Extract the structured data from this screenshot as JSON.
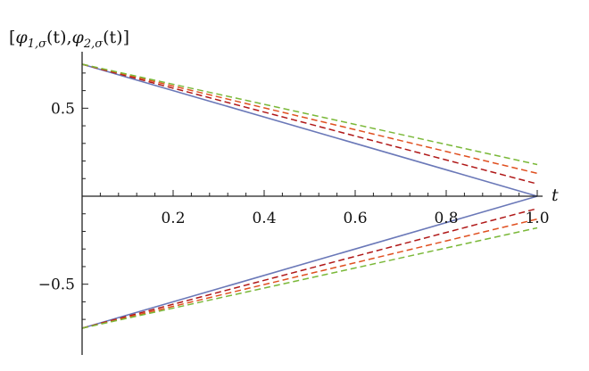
{
  "chart_data": {
    "type": "line",
    "title": "",
    "xlabel": "t",
    "ylabel": "[φ1,σ(t),φ2,σ(t)]",
    "ylabel_parts": {
      "open": "[",
      "phi1": "φ",
      "sub1": "1,σ",
      "arg1": "(t),",
      "phi2": "φ",
      "sub2": "2,σ",
      "arg2": "(t)]"
    },
    "xlim": [
      0,
      1.0
    ],
    "ylim": [
      -0.75,
      0.75
    ],
    "xticks": [
      0.2,
      0.4,
      0.6,
      0.8,
      1.0
    ],
    "xtick_labels": [
      "0.2",
      "0.4",
      "0.6",
      "0.8",
      "1.0"
    ],
    "yticks": [
      0.5,
      -0.5
    ],
    "ytick_labels": [
      "0.5",
      "−0.5"
    ],
    "grid": false,
    "series": [
      {
        "color": "#6a78b8",
        "dash": "solid",
        "x": [
          0,
          1.0
        ],
        "y": [
          0.75,
          0.0
        ]
      },
      {
        "color": "#6a78b8",
        "dash": "solid",
        "x": [
          0,
          1.0
        ],
        "y": [
          -0.75,
          0.0
        ]
      },
      {
        "color": "#b01818",
        "dash": "dashed",
        "x": [
          0,
          1.0
        ],
        "y": [
          0.75,
          0.07
        ]
      },
      {
        "color": "#b01818",
        "dash": "dashed",
        "x": [
          0,
          1.0
        ],
        "y": [
          -0.75,
          -0.07
        ]
      },
      {
        "color": "#e05020",
        "dash": "dashed",
        "x": [
          0,
          1.0
        ],
        "y": [
          0.75,
          0.13
        ]
      },
      {
        "color": "#e05020",
        "dash": "dashed",
        "x": [
          0,
          1.0
        ],
        "y": [
          -0.75,
          -0.13
        ]
      },
      {
        "color": "#7ab838",
        "dash": "dashed",
        "x": [
          0,
          1.0
        ],
        "y": [
          0.75,
          0.18
        ]
      },
      {
        "color": "#7ab838",
        "dash": "dashed",
        "x": [
          0,
          1.0
        ],
        "y": [
          -0.75,
          -0.18
        ]
      }
    ]
  }
}
